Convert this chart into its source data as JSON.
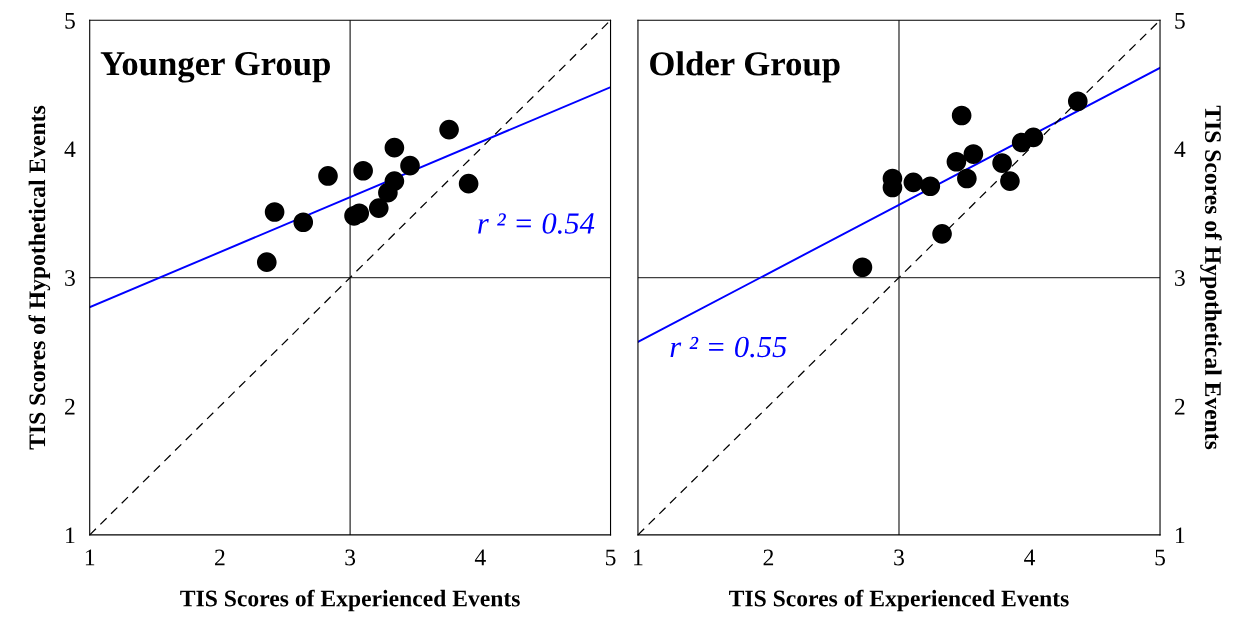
{
  "chart_data": [
    {
      "type": "scatter",
      "title": "Younger Group",
      "xlabel": "TIS Scores of Experienced Events",
      "ylabel": "TIS Scores of Hypothetical Events",
      "xlim": [
        1,
        5
      ],
      "ylim": [
        1,
        5
      ],
      "xticks": [
        1,
        2,
        3,
        4,
        5
      ],
      "yticks": [
        1,
        2,
        3,
        4,
        5
      ],
      "grid": false,
      "legend": false,
      "ref_lines": [
        {
          "axis": "x",
          "value": 3,
          "color": "#404040"
        },
        {
          "axis": "y",
          "value": 3,
          "color": "#404040"
        }
      ],
      "annotations": [
        "r ² = 0.54"
      ],
      "series": [
        {
          "marker": "circle",
          "color": "#000000",
          "x": [
            2.36,
            2.42,
            2.64,
            2.83,
            3.03,
            3.07,
            3.1,
            3.22,
            3.29,
            3.34,
            3.34,
            3.46,
            3.76,
            3.91
          ],
          "values": [
            3.12,
            3.51,
            3.43,
            3.79,
            3.48,
            3.5,
            3.83,
            3.54,
            3.66,
            3.75,
            4.01,
            3.87,
            4.15,
            3.73
          ]
        },
        {
          "type": "line",
          "color": "#0000ff",
          "line_style": "solid",
          "x": [
            1,
            5
          ],
          "values": [
            2.77,
            4.48
          ]
        },
        {
          "type": "line",
          "color": "#000000",
          "line_style": "dashed",
          "x": [
            1,
            5
          ],
          "values": [
            1,
            5
          ]
        }
      ]
    },
    {
      "type": "scatter",
      "title": "Older Group",
      "xlabel": "TIS Scores of Experienced Events",
      "y2label": "TIS Scores of Hypothetical Events",
      "xlim": [
        1,
        5
      ],
      "y2lim": [
        1,
        5
      ],
      "xticks": [
        1,
        2,
        3,
        4,
        5
      ],
      "y2ticks": [
        1,
        2,
        3,
        4,
        5
      ],
      "grid": false,
      "legend": false,
      "ref_lines": [
        {
          "axis": "x",
          "value": 3,
          "color": "#404040"
        },
        {
          "axis": "y2",
          "value": 3,
          "color": "#404040"
        }
      ],
      "annotations": [
        "r ² = 0.55"
      ],
      "series": [
        {
          "marker": "circle",
          "axis": "y2",
          "color": "#000000",
          "x": [
            2.72,
            2.95,
            2.95,
            3.11,
            3.24,
            3.33,
            3.44,
            3.48,
            3.52,
            3.57,
            3.79,
            3.85,
            3.94,
            4.03,
            4.37
          ],
          "values": [
            3.08,
            3.77,
            3.7,
            3.74,
            3.71,
            3.34,
            3.9,
            4.26,
            3.77,
            3.96,
            3.89,
            3.75,
            4.05,
            4.09,
            4.37
          ]
        },
        {
          "type": "line",
          "axis": "y2",
          "color": "#0000ff",
          "line_style": "solid",
          "x": [
            1,
            5
          ],
          "values": [
            2.5,
            4.63
          ]
        },
        {
          "type": "line",
          "axis": "y2",
          "color": "#000000",
          "line_style": "dashed",
          "x": [
            1,
            5
          ],
          "values": [
            1,
            5
          ]
        }
      ]
    }
  ]
}
